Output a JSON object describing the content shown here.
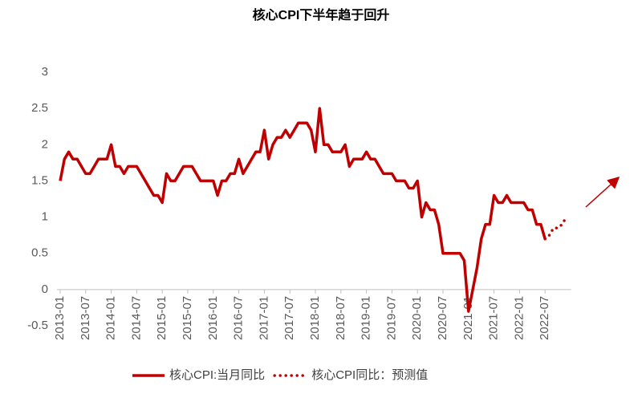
{
  "chart_data": {
    "type": "line",
    "title": "核心CPI下半年趋于回升",
    "categories": [
      "2013-01",
      null,
      null,
      null,
      null,
      null,
      "2013-07",
      null,
      null,
      null,
      null,
      null,
      "2014-01",
      null,
      null,
      null,
      null,
      null,
      "2014-07",
      null,
      null,
      null,
      null,
      null,
      "2015-01",
      null,
      null,
      null,
      null,
      null,
      "2015-07",
      null,
      null,
      null,
      null,
      null,
      "2016-01",
      null,
      null,
      null,
      null,
      null,
      "2016-07",
      null,
      null,
      null,
      null,
      null,
      "2017-01",
      null,
      null,
      null,
      null,
      null,
      "2017-07",
      null,
      null,
      null,
      null,
      null,
      "2018-01",
      null,
      null,
      null,
      null,
      null,
      "2018-07",
      null,
      null,
      null,
      null,
      null,
      "2019-01",
      null,
      null,
      null,
      null,
      null,
      "2019-07",
      null,
      null,
      null,
      null,
      null,
      "2020-01",
      null,
      null,
      null,
      null,
      null,
      "2020-07",
      null,
      null,
      null,
      null,
      null,
      "2021-01",
      null,
      null,
      null,
      null,
      null,
      "2021-07",
      null,
      null,
      null,
      null,
      null,
      "2022-01",
      null,
      null,
      null,
      null,
      null,
      "2022-07",
      null,
      null,
      null,
      null,
      null
    ],
    "series": [
      {
        "name": "核心CPI:当月同比",
        "color": "#c00000",
        "style": "solid",
        "values": [
          1.5,
          1.8,
          1.9,
          1.8,
          1.8,
          1.7,
          1.6,
          1.6,
          1.7,
          1.8,
          1.8,
          1.8,
          2.0,
          1.7,
          1.7,
          1.6,
          1.7,
          1.7,
          1.7,
          1.6,
          1.5,
          1.4,
          1.3,
          1.3,
          1.2,
          1.6,
          1.5,
          1.5,
          1.6,
          1.7,
          1.7,
          1.7,
          1.6,
          1.5,
          1.5,
          1.5,
          1.5,
          1.3,
          1.5,
          1.5,
          1.6,
          1.6,
          1.8,
          1.6,
          1.7,
          1.8,
          1.9,
          1.9,
          2.2,
          1.8,
          2.0,
          2.1,
          2.1,
          2.2,
          2.1,
          2.2,
          2.3,
          2.3,
          2.3,
          2.2,
          1.9,
          2.5,
          2.0,
          2.0,
          1.9,
          1.9,
          1.9,
          2.0,
          1.7,
          1.8,
          1.8,
          1.8,
          1.9,
          1.8,
          1.8,
          1.7,
          1.6,
          1.6,
          1.6,
          1.5,
          1.5,
          1.5,
          1.4,
          1.4,
          1.5,
          1.0,
          1.2,
          1.1,
          1.1,
          0.9,
          0.5,
          0.5,
          0.5,
          0.5,
          0.5,
          0.4,
          -0.3,
          0.0,
          0.3,
          0.7,
          0.9,
          0.9,
          1.3,
          1.2,
          1.2,
          1.3,
          1.2,
          1.2,
          1.2,
          1.2,
          1.1,
          1.1,
          0.9,
          0.9,
          0.7,
          null,
          null,
          null,
          null,
          null
        ]
      },
      {
        "name": "核心CPI同比：预测值",
        "color": "#c00000",
        "style": "dotted",
        "values": [
          null,
          null,
          null,
          null,
          null,
          null,
          null,
          null,
          null,
          null,
          null,
          null,
          null,
          null,
          null,
          null,
          null,
          null,
          null,
          null,
          null,
          null,
          null,
          null,
          null,
          null,
          null,
          null,
          null,
          null,
          null,
          null,
          null,
          null,
          null,
          null,
          null,
          null,
          null,
          null,
          null,
          null,
          null,
          null,
          null,
          null,
          null,
          null,
          null,
          null,
          null,
          null,
          null,
          null,
          null,
          null,
          null,
          null,
          null,
          null,
          null,
          null,
          null,
          null,
          null,
          null,
          null,
          null,
          null,
          null,
          null,
          null,
          null,
          null,
          null,
          null,
          null,
          null,
          null,
          null,
          null,
          null,
          null,
          null,
          null,
          null,
          null,
          null,
          null,
          null,
          null,
          null,
          null,
          null,
          null,
          null,
          null,
          null,
          null,
          null,
          null,
          null,
          null,
          null,
          null,
          null,
          null,
          null,
          null,
          null,
          null,
          null,
          null,
          null,
          0.7,
          0.75,
          0.85,
          0.85,
          0.9,
          1.0
        ]
      }
    ],
    "ylim": [
      -0.5,
      3
    ],
    "yticks": [
      -0.5,
      0,
      0.5,
      1,
      1.5,
      2,
      2.5,
      3
    ],
    "grid": false,
    "legend": "bottom"
  }
}
